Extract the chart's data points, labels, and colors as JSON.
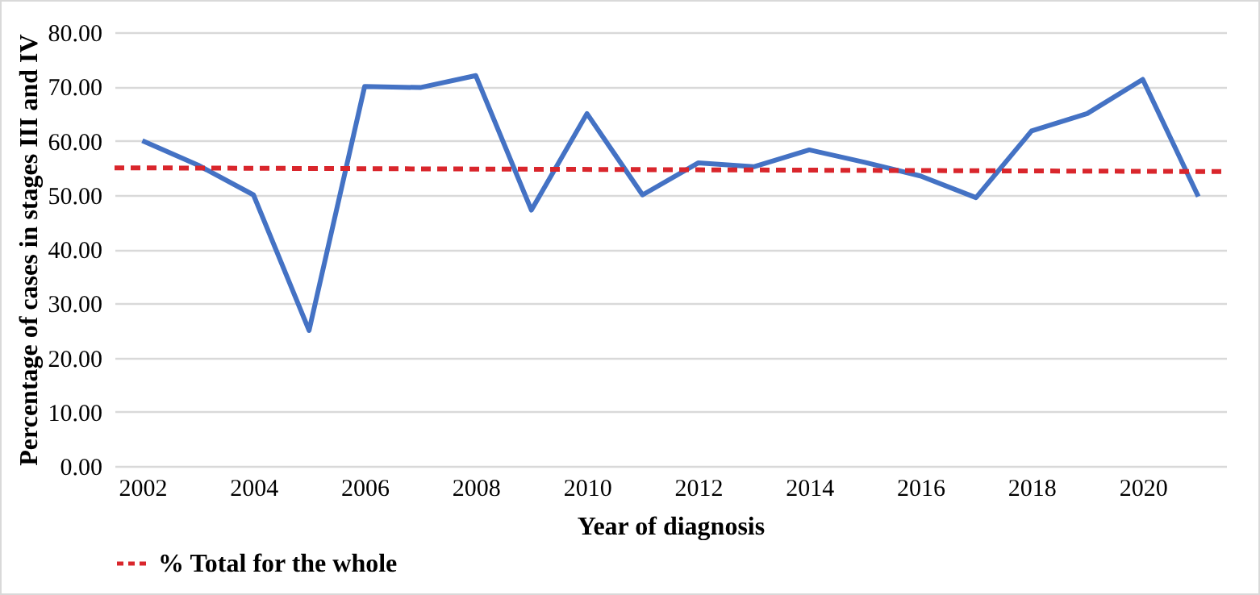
{
  "chart_data": {
    "type": "line",
    "xlabel": "Year of diagnosis",
    "ylabel": "Percentage of cases in stages III and IV",
    "xlim": [
      2001.5,
      2021.5
    ],
    "xticks": [
      2002,
      2004,
      2006,
      2008,
      2010,
      2012,
      2014,
      2016,
      2018,
      2020
    ],
    "ylim": [
      0,
      80
    ],
    "yticks": [
      {
        "value": 0,
        "label": "0.00"
      },
      {
        "value": 10,
        "label": "10.00"
      },
      {
        "value": 20,
        "label": "20.00"
      },
      {
        "value": 30,
        "label": "30.00"
      },
      {
        "value": 40,
        "label": "40.00"
      },
      {
        "value": 50,
        "label": "50.00"
      },
      {
        "value": 60,
        "label": "60.00"
      },
      {
        "value": 70,
        "label": "70.00"
      },
      {
        "value": 80,
        "label": "80.00"
      }
    ],
    "grid": "y",
    "legend": "bottom",
    "series": [
      {
        "color": "#4472c4",
        "x": [
          2002,
          2003,
          2004,
          2005,
          2006,
          2007,
          2008,
          2009,
          2010,
          2011,
          2012,
          2013,
          2014,
          2015,
          2016,
          2017,
          2018,
          2019,
          2020,
          2021
        ],
        "values": [
          60,
          55.5,
          50,
          25,
          70,
          69.8,
          72,
          47.2,
          65,
          50,
          55.9,
          55.2,
          58.3,
          56,
          53.5,
          49.5,
          61.8,
          65,
          71.3,
          49.7
        ]
      },
      {
        "name": "% Total for the whole",
        "color": "#d9262c",
        "line_style": "dashed",
        "x": [
          2001.5,
          2021.5
        ],
        "values": [
          55,
          54.3
        ]
      }
    ]
  }
}
